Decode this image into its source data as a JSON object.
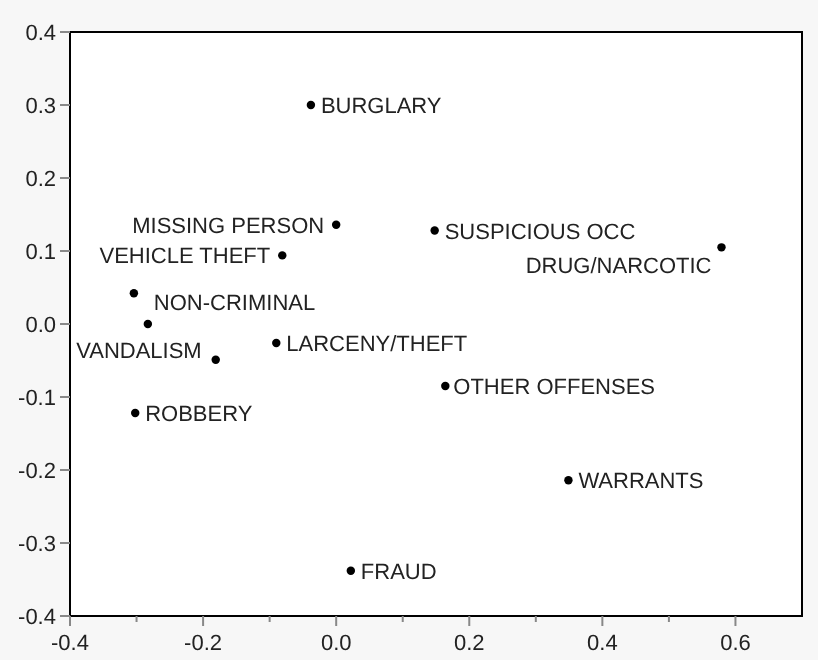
{
  "chart_data": {
    "type": "scatter",
    "x": [
      -0.038,
      0.0,
      -0.081,
      -0.304,
      -0.283,
      -0.181,
      -0.09,
      -0.302,
      0.022,
      0.148,
      0.579,
      0.164,
      0.349
    ],
    "series": [
      {
        "color": "#000000",
        "values": [
          0.3,
          0.136,
          0.094,
          0.042,
          0.0,
          -0.049,
          -0.026,
          -0.122,
          -0.338,
          0.128,
          0.105,
          -0.085,
          -0.214
        ]
      }
    ],
    "marker": "circle",
    "grid": false,
    "xlim": [
      -0.4,
      0.7
    ],
    "xticks": [
      -0.4,
      {
        "value": -0.3,
        "label": null
      },
      -0.2,
      {
        "value": -0.1,
        "label": null
      },
      {
        "value": 0,
        "label": "0.0"
      },
      {
        "value": 0.1,
        "label": null
      },
      0.2,
      {
        "value": 0.3,
        "label": null
      },
      0.4,
      {
        "value": 0.5,
        "label": null
      },
      0.6
    ],
    "ylim": [
      -0.4,
      0.4
    ],
    "yticks": [
      -0.4,
      -0.3,
      -0.2,
      -0.1,
      {
        "value": 0,
        "label": "0.0"
      },
      0.1,
      0.2,
      0.3,
      0.4
    ],
    "annotations": [
      {
        "text": "BURGLARY",
        "x": -0.038,
        "y": 0.3
      },
      {
        "text": "MISSING PERSON",
        "x": 0.0,
        "y": 0.136
      },
      {
        "text": "VEHICLE THEFT",
        "x": -0.081,
        "y": 0.094
      },
      {
        "text": "NON-CRIMINAL",
        "x": -0.283,
        "y": 0.0
      },
      {
        "text": "VANDALISM",
        "x": -0.181,
        "y": -0.049
      },
      {
        "text": "LARCENY/THEFT",
        "x": -0.09,
        "y": -0.026
      },
      {
        "text": "ROBBERY",
        "x": -0.302,
        "y": -0.122
      },
      {
        "text": "FRAUD",
        "x": 0.022,
        "y": -0.338
      },
      {
        "text": "SUSPICIOUS OCC",
        "x": 0.148,
        "y": 0.128
      },
      {
        "text": "DRUG/NARCOTIC",
        "x": 0.579,
        "y": 0.105
      },
      {
        "text": "OTHER OFFENSES",
        "x": 0.164,
        "y": -0.085
      },
      {
        "text": "WARRANTS",
        "x": 0.349,
        "y": -0.214
      }
    ]
  }
}
